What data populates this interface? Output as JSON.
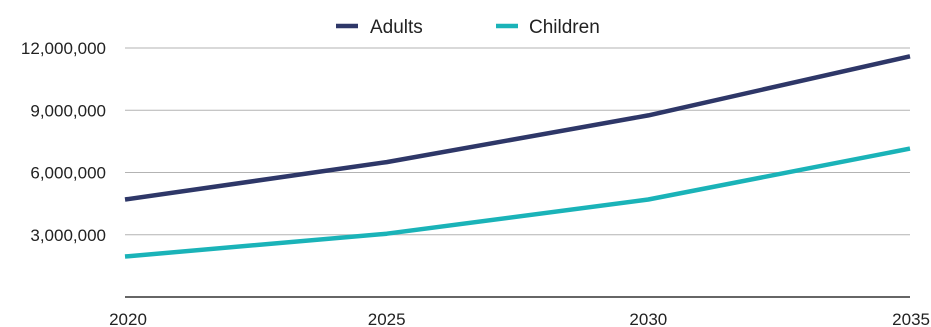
{
  "chart_data": {
    "type": "line",
    "title": "",
    "xlabel": "",
    "ylabel": "",
    "x": [
      2020,
      2025,
      2030,
      2035
    ],
    "xticks": [
      "2020",
      "2025",
      "2030",
      "2035"
    ],
    "yticks": [
      {
        "value": 3000000,
        "label": "3,000,000"
      },
      {
        "value": 6000000,
        "label": "6,000,000"
      },
      {
        "value": 9000000,
        "label": "9,000,000"
      },
      {
        "value": 12000000,
        "label": "12,000,000"
      }
    ],
    "ylim": [
      0,
      12000000
    ],
    "grid": "horizontal",
    "legend_position": "top-center",
    "series": [
      {
        "name": "Adults",
        "color": "#2e3768",
        "values": [
          4700000,
          6500000,
          8750000,
          11600000
        ]
      },
      {
        "name": "Children",
        "color": "#1ab3b8",
        "values": [
          1950000,
          3050000,
          4700000,
          7150000
        ]
      }
    ]
  }
}
